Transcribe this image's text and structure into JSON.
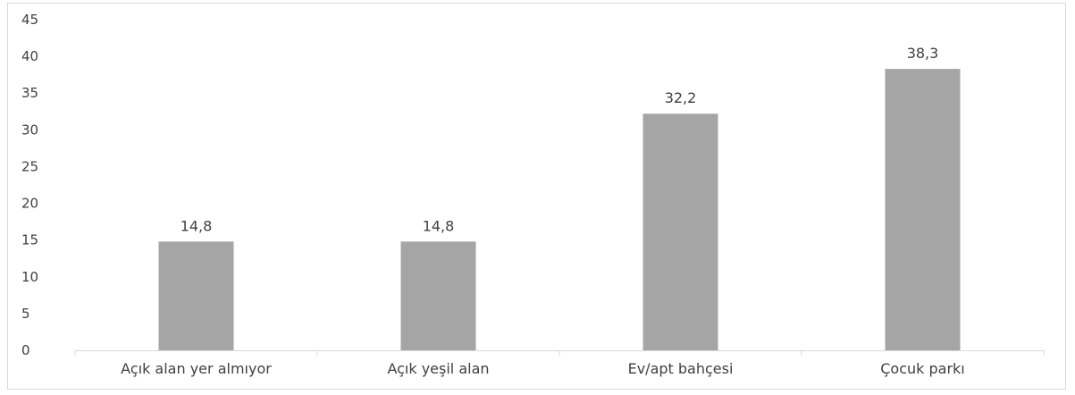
{
  "chart_data": {
    "type": "bar",
    "categories": [
      "Açık alan yer almıyor",
      "Açık yeşil alan",
      "Ev/apt bahçesi",
      "Çocuk parkı"
    ],
    "values": [
      14.8,
      14.8,
      32.2,
      38.3
    ],
    "value_labels": [
      "14,8",
      "14,8",
      "32,2",
      "38,3"
    ],
    "ylim": [
      0,
      45
    ],
    "ytick_step": 5,
    "ytick_labels": [
      "0",
      "5",
      "10",
      "15",
      "20",
      "25",
      "30",
      "35",
      "40",
      "45"
    ],
    "title": "",
    "xlabel": "",
    "ylabel": "",
    "grid": false,
    "legend": "none",
    "colors": {
      "bar": "#a5a5a5",
      "axis": "#d9d9d9",
      "text": "#404040"
    }
  }
}
